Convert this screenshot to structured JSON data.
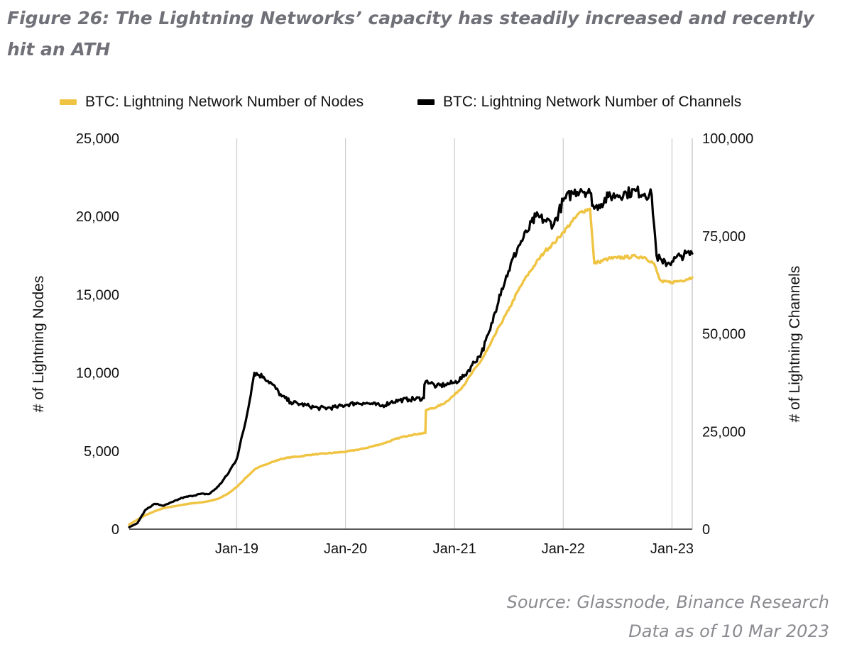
{
  "title": "Figure 26: The Lightning Networks’ capacity has steadily increased and recently hit an ATH",
  "source_line1": "Source: Glassnode, Binance Research",
  "source_line2": "Data as of 10 Mar 2023",
  "colors": {
    "nodes": "#f0c443",
    "channels": "#000000",
    "grid": "#d0d0d0",
    "title": "#707078"
  },
  "chart_data": {
    "type": "line",
    "legend_position": "top",
    "grid": true,
    "xlabel": "",
    "x_ticks": [
      "Jan-19",
      "Jan-20",
      "Jan-21",
      "Jan-22",
      "Jan-23"
    ],
    "x_tick_values": [
      "2019-01-01",
      "2020-01-01",
      "2021-01-01",
      "2022-01-01",
      "2023-01-01"
    ],
    "xlim": [
      "2018-01-05",
      "2023-03-10"
    ],
    "y_left": {
      "label": "# of Lightning Nodes",
      "lim": [
        0,
        25000
      ],
      "ticks": [
        "0",
        "5,000",
        "10,000",
        "15,000",
        "20,000",
        "25,000"
      ]
    },
    "y_right": {
      "label": "# of Lightning Channels",
      "lim": [
        0,
        100000
      ],
      "ticks": [
        "0",
        "25,000",
        "50,000",
        "75,000",
        "100,000"
      ]
    },
    "series": [
      {
        "name": "BTC: Lightning Network Number of Nodes",
        "axis": "left",
        "color": "#f0c443",
        "points": [
          [
            "2018-01-05",
            300
          ],
          [
            "2018-02-01",
            600
          ],
          [
            "2018-03-01",
            900
          ],
          [
            "2018-04-01",
            1150
          ],
          [
            "2018-05-01",
            1350
          ],
          [
            "2018-06-01",
            1450
          ],
          [
            "2018-07-01",
            1550
          ],
          [
            "2018-08-01",
            1650
          ],
          [
            "2018-09-01",
            1700
          ],
          [
            "2018-10-01",
            1800
          ],
          [
            "2018-11-01",
            1950
          ],
          [
            "2018-12-01",
            2250
          ],
          [
            "2019-01-01",
            2700
          ],
          [
            "2019-02-01",
            3300
          ],
          [
            "2019-03-01",
            3800
          ],
          [
            "2019-04-01",
            4100
          ],
          [
            "2019-05-01",
            4300
          ],
          [
            "2019-06-01",
            4500
          ],
          [
            "2019-07-01",
            4600
          ],
          [
            "2019-08-01",
            4650
          ],
          [
            "2019-09-01",
            4750
          ],
          [
            "2019-10-01",
            4800
          ],
          [
            "2019-11-01",
            4850
          ],
          [
            "2019-12-01",
            4900
          ],
          [
            "2020-01-01",
            4950
          ],
          [
            "2020-02-01",
            5050
          ],
          [
            "2020-03-01",
            5150
          ],
          [
            "2020-04-01",
            5300
          ],
          [
            "2020-05-01",
            5450
          ],
          [
            "2020-06-01",
            5650
          ],
          [
            "2020-07-01",
            5850
          ],
          [
            "2020-08-01",
            6000
          ],
          [
            "2020-09-01",
            6100
          ],
          [
            "2020-09-25",
            6150
          ],
          [
            "2020-09-27",
            7600
          ],
          [
            "2020-10-01",
            7650
          ],
          [
            "2020-11-01",
            7800
          ],
          [
            "2020-12-01",
            8100
          ],
          [
            "2021-01-01",
            8600
          ],
          [
            "2021-02-01",
            9200
          ],
          [
            "2021-03-01",
            10000
          ],
          [
            "2021-04-01",
            10800
          ],
          [
            "2021-05-01",
            11800
          ],
          [
            "2021-06-01",
            13000
          ],
          [
            "2021-07-01",
            14000
          ],
          [
            "2021-08-01",
            15200
          ],
          [
            "2021-09-01",
            16200
          ],
          [
            "2021-10-01",
            17000
          ],
          [
            "2021-11-01",
            17800
          ],
          [
            "2021-12-01",
            18300
          ],
          [
            "2022-01-01",
            19000
          ],
          [
            "2022-02-01",
            19700
          ],
          [
            "2022-03-01",
            20300
          ],
          [
            "2022-04-01",
            20500
          ],
          [
            "2022-04-15",
            17000
          ],
          [
            "2022-05-01",
            17100
          ],
          [
            "2022-06-01",
            17300
          ],
          [
            "2022-07-01",
            17350
          ],
          [
            "2022-08-01",
            17400
          ],
          [
            "2022-09-01",
            17450
          ],
          [
            "2022-10-01",
            17400
          ],
          [
            "2022-11-01",
            17000
          ],
          [
            "2022-11-20",
            16000
          ],
          [
            "2022-12-01",
            15800
          ],
          [
            "2023-01-01",
            15800
          ],
          [
            "2023-02-01",
            15900
          ],
          [
            "2023-03-10",
            16100
          ]
        ]
      },
      {
        "name": "BTC: Lightning Network Number of Channels",
        "axis": "right",
        "color": "#000000",
        "points": [
          [
            "2018-01-05",
            500
          ],
          [
            "2018-02-01",
            1500
          ],
          [
            "2018-03-01",
            5000
          ],
          [
            "2018-04-01",
            6500
          ],
          [
            "2018-05-01",
            6000
          ],
          [
            "2018-06-01",
            7000
          ],
          [
            "2018-07-01",
            8000
          ],
          [
            "2018-08-01",
            8500
          ],
          [
            "2018-09-01",
            9000
          ],
          [
            "2018-10-01",
            9000
          ],
          [
            "2018-11-01",
            11000
          ],
          [
            "2018-12-01",
            14000
          ],
          [
            "2019-01-01",
            18000
          ],
          [
            "2019-02-01",
            28000
          ],
          [
            "2019-03-01",
            40000
          ],
          [
            "2019-04-01",
            39000
          ],
          [
            "2019-05-01",
            37000
          ],
          [
            "2019-06-01",
            34000
          ],
          [
            "2019-07-01",
            32500
          ],
          [
            "2019-08-01",
            32000
          ],
          [
            "2019-09-01",
            31500
          ],
          [
            "2019-10-01",
            31000
          ],
          [
            "2019-11-01",
            31000
          ],
          [
            "2019-12-01",
            31200
          ],
          [
            "2020-01-01",
            31800
          ],
          [
            "2020-02-01",
            32200
          ],
          [
            "2020-03-01",
            32300
          ],
          [
            "2020-04-01",
            32000
          ],
          [
            "2020-05-01",
            31500
          ],
          [
            "2020-06-01",
            32500
          ],
          [
            "2020-07-01",
            33000
          ],
          [
            "2020-08-01",
            33200
          ],
          [
            "2020-09-20",
            33500
          ],
          [
            "2020-09-22",
            37000
          ],
          [
            "2020-10-01",
            38000
          ],
          [
            "2020-11-01",
            36500
          ],
          [
            "2020-12-01",
            37000
          ],
          [
            "2021-01-01",
            37500
          ],
          [
            "2021-02-01",
            39000
          ],
          [
            "2021-03-01",
            42000
          ],
          [
            "2021-04-01",
            45000
          ],
          [
            "2021-05-01",
            51000
          ],
          [
            "2021-06-01",
            60000
          ],
          [
            "2021-07-01",
            66000
          ],
          [
            "2021-08-01",
            72000
          ],
          [
            "2021-09-01",
            76000
          ],
          [
            "2021-10-01",
            80000
          ],
          [
            "2021-11-01",
            79000
          ],
          [
            "2021-12-01",
            78000
          ],
          [
            "2022-01-01",
            84000
          ],
          [
            "2022-02-01",
            86000
          ],
          [
            "2022-03-01",
            87000
          ],
          [
            "2022-04-01",
            86000
          ],
          [
            "2022-04-15",
            82000
          ],
          [
            "2022-05-01",
            83000
          ],
          [
            "2022-06-01",
            85000
          ],
          [
            "2022-07-01",
            85500
          ],
          [
            "2022-08-01",
            86000
          ],
          [
            "2022-09-01",
            86500
          ],
          [
            "2022-10-01",
            85800
          ],
          [
            "2022-10-25",
            85500
          ],
          [
            "2022-11-10",
            70000
          ],
          [
            "2022-12-01",
            68000
          ],
          [
            "2023-01-01",
            68500
          ],
          [
            "2023-02-01",
            70000
          ],
          [
            "2023-03-10",
            70500
          ]
        ]
      }
    ]
  }
}
